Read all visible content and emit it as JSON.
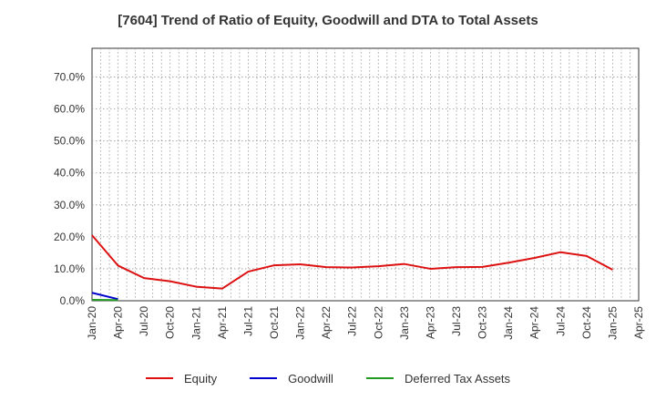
{
  "chart_data": {
    "type": "line",
    "title": "[7604]  Trend of Ratio of Equity, Goodwill and DTA to Total Assets",
    "xlabel": "",
    "ylabel": "",
    "ylim": [
      0,
      0.79
    ],
    "yticks": [
      0,
      0.1,
      0.2,
      0.3,
      0.4,
      0.5,
      0.6,
      0.7
    ],
    "ytick_labels": [
      "0.0%",
      "10.0%",
      "20.0%",
      "30.0%",
      "40.0%",
      "50.0%",
      "60.0%",
      "70.0%"
    ],
    "x_tick_labels": [
      "Jan-20",
      "Apr-20",
      "Jul-20",
      "Oct-20",
      "Jan-21",
      "Apr-21",
      "Jul-21",
      "Oct-21",
      "Jan-22",
      "Apr-22",
      "Jul-22",
      "Oct-22",
      "Jan-23",
      "Apr-23",
      "Jul-23",
      "Oct-23",
      "Jan-24",
      "Apr-24",
      "Jul-24",
      "Oct-24",
      "Jan-25",
      "Apr-25"
    ],
    "grid": true,
    "legend_position": "bottom",
    "series": [
      {
        "name": "Equity",
        "color": "#dd1111",
        "points": [
          {
            "x": "Jan-20",
            "y": 0.205
          },
          {
            "x": "Apr-20",
            "y": 0.11
          },
          {
            "x": "Jul-20",
            "y": 0.071
          },
          {
            "x": "Oct-20",
            "y": 0.061
          },
          {
            "x": "Jan-21",
            "y": 0.044
          },
          {
            "x": "Apr-21",
            "y": 0.038
          },
          {
            "x": "Jul-21",
            "y": 0.091
          },
          {
            "x": "Oct-21",
            "y": 0.111
          },
          {
            "x": "Jan-22",
            "y": 0.114
          },
          {
            "x": "Apr-22",
            "y": 0.105
          },
          {
            "x": "Jul-22",
            "y": 0.104
          },
          {
            "x": "Oct-22",
            "y": 0.108
          },
          {
            "x": "Jan-23",
            "y": 0.115
          },
          {
            "x": "Apr-23",
            "y": 0.1
          },
          {
            "x": "Jul-23",
            "y": 0.105
          },
          {
            "x": "Oct-23",
            "y": 0.106
          },
          {
            "x": "Jan-24",
            "y": 0.119
          },
          {
            "x": "Apr-24",
            "y": 0.134
          },
          {
            "x": "Jul-24",
            "y": 0.152
          },
          {
            "x": "Oct-24",
            "y": 0.14
          },
          {
            "x": "Jan-25",
            "y": 0.097
          }
        ]
      },
      {
        "name": "Goodwill",
        "color": "#0000cc",
        "points": [
          {
            "x": "Jan-20",
            "y": 0.025
          },
          {
            "x": "Apr-20",
            "y": 0.005
          }
        ]
      },
      {
        "name": "Deferred Tax Assets",
        "color": "#229922",
        "points": [
          {
            "x": "Jan-20",
            "y": 0.003
          },
          {
            "x": "Apr-20",
            "y": 0.002
          }
        ]
      }
    ]
  }
}
